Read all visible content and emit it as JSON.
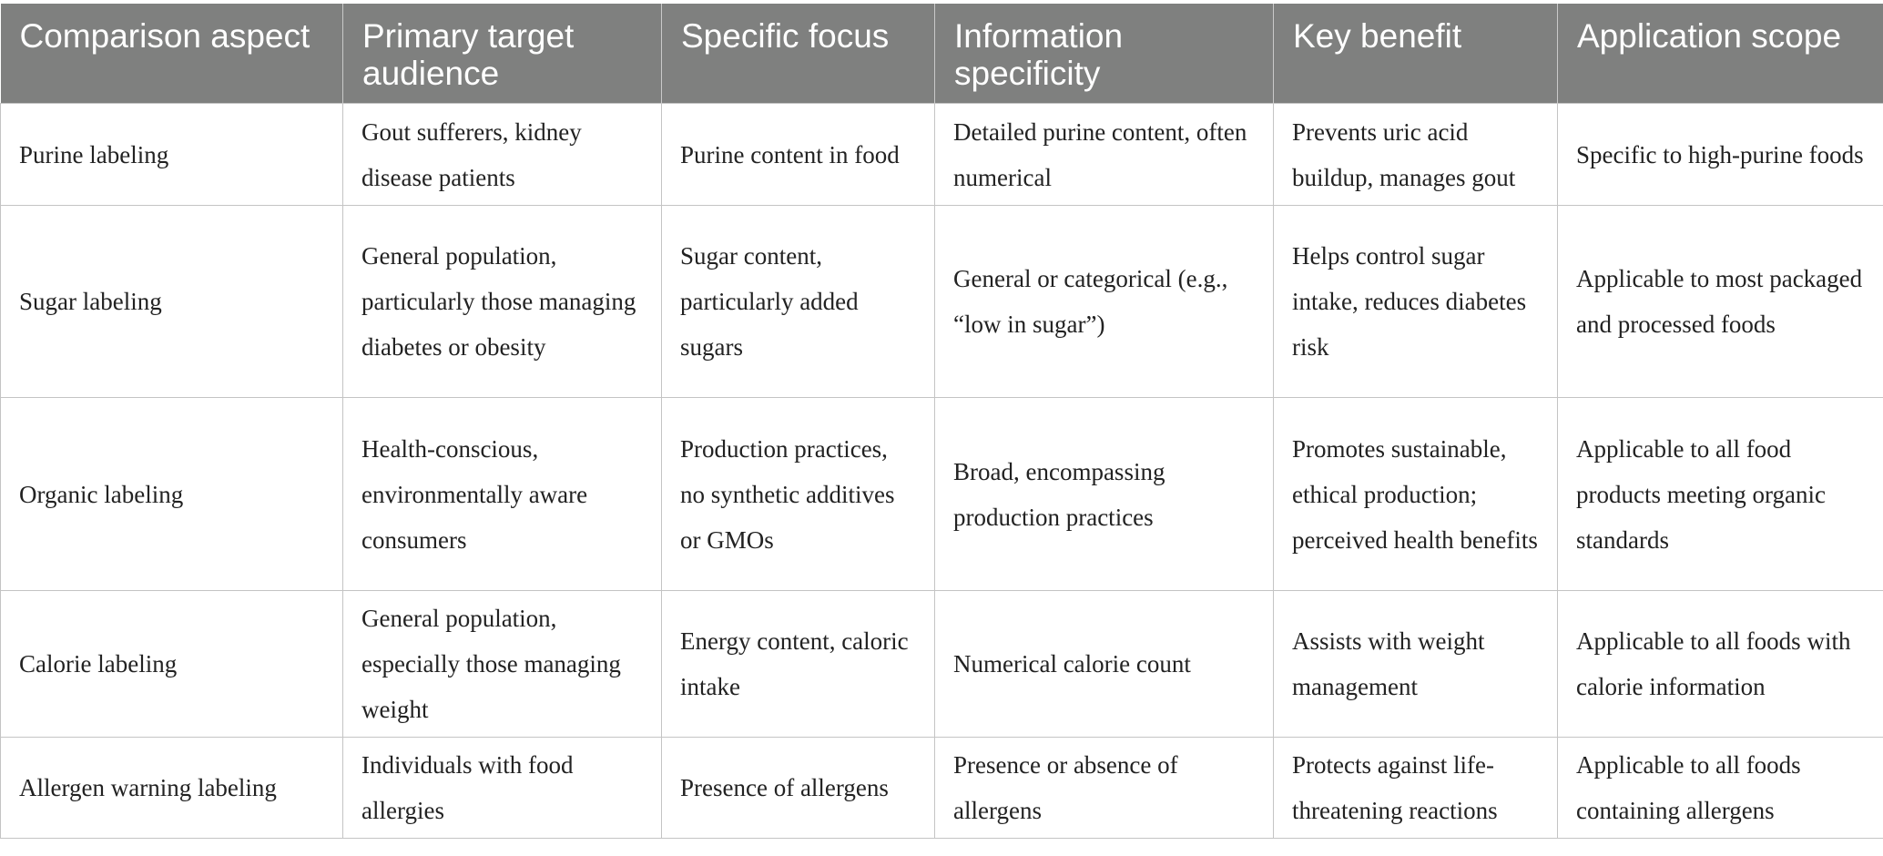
{
  "table": {
    "headers": [
      "Comparison aspect",
      "Primary target audience",
      "Specific focus",
      "Information specificity",
      "Key benefit",
      "Application scope"
    ],
    "rows": [
      [
        "Purine labeling",
        "Gout sufferers, kidney disease patients",
        "Purine content in food",
        "Detailed purine content, often numerical",
        "Prevents uric acid buildup, manages gout",
        "Specific to high-purine foods"
      ],
      [
        "Sugar labeling",
        "General population, particularly those managing diabetes or obesity",
        "Sugar content, particularly added sugars",
        "General or categorical (e.g., “low in sugar”)",
        "Helps control sugar intake, reduces diabetes risk",
        "Applicable to most packaged and processed foods"
      ],
      [
        "Organic labeling",
        "Health-conscious, environmentally aware consumers",
        "Production practices, no synthetic additives or GMOs",
        "Broad, encompassing production practices",
        "Promotes sustainable, ethical production; perceived health benefits",
        "Applicable to all food products meeting organic standards"
      ],
      [
        "Calorie labeling",
        "General population, especially those managing weight",
        "Energy content, caloric intake",
        "Numerical calorie count",
        "Assists with weight management",
        "Applicable to all foods with calorie information"
      ],
      [
        "Allergen warning labeling",
        "Individuals with food allergies",
        "Presence of allergens",
        "Presence or absence of allergens",
        "Protects against life-threatening reactions",
        "Applicable to all foods containing allergens"
      ]
    ]
  }
}
